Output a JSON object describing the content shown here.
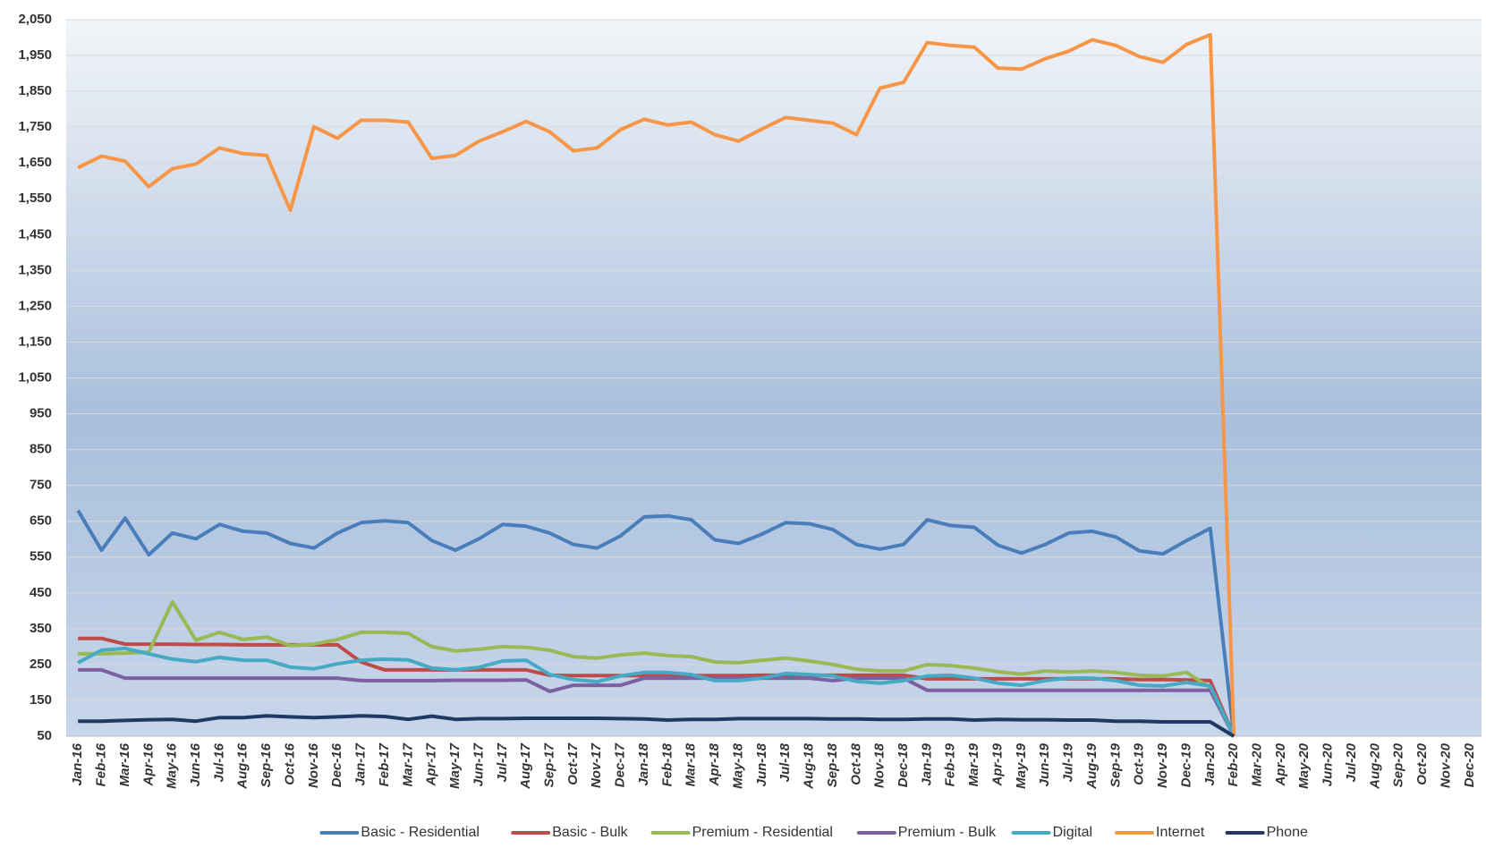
{
  "chart_data": {
    "type": "line",
    "categories": [
      "Jan-16",
      "Feb-16",
      "Mar-16",
      "Apr-16",
      "May-16",
      "Jun-16",
      "Jul-16",
      "Aug-16",
      "Sep-16",
      "Oct-16",
      "Nov-16",
      "Dec-16",
      "Jan-17",
      "Feb-17",
      "Mar-17",
      "Apr-17",
      "May-17",
      "Jun-17",
      "Jul-17",
      "Aug-17",
      "Sep-17",
      "Oct-17",
      "Nov-17",
      "Dec-17",
      "Jan-18",
      "Feb-18",
      "Mar-18",
      "Apr-18",
      "May-18",
      "Jun-18",
      "Jul-18",
      "Aug-18",
      "Sep-18",
      "Oct-18",
      "Nov-18",
      "Dec-18",
      "Jan-19",
      "Feb-19",
      "Mar-19",
      "Apr-19",
      "May-19",
      "Jun-19",
      "Jul-19",
      "Aug-19",
      "Sep-19",
      "Oct-19",
      "Nov-19",
      "Dec-19",
      "Jan-20",
      "Feb-20",
      "Mar-20",
      "Apr-20",
      "May-20",
      "Jun-20",
      "Jul-20",
      "Aug-20",
      "Sep-20",
      "Oct-20",
      "Nov-20",
      "Dec-20"
    ],
    "series": [
      {
        "name": "Basic - Residential",
        "color": "#4a7ebb",
        "values": [
          680,
          569,
          659,
          556,
          617,
          601,
          641,
          622,
          617,
          588,
          575,
          617,
          646,
          651,
          646,
          596,
          569,
          601,
          641,
          636,
          617,
          585,
          575,
          609,
          662,
          665,
          654,
          598,
          588,
          614,
          646,
          643,
          627,
          585,
          572,
          585,
          654,
          638,
          633,
          583,
          561,
          585,
          617,
          622,
          606,
          567,
          559,
          596,
          630,
          50,
          null,
          null,
          null,
          null,
          null,
          null,
          null,
          null,
          null,
          null
        ]
      },
      {
        "name": "Basic - Bulk",
        "color": "#be4b48",
        "values": [
          323,
          323,
          307,
          307,
          307,
          306,
          306,
          305,
          305,
          305,
          305,
          305,
          257,
          235,
          235,
          235,
          235,
          235,
          235,
          235,
          220,
          219,
          219,
          219,
          219,
          219,
          219,
          219,
          219,
          220,
          220,
          220,
          220,
          220,
          220,
          220,
          210,
          210,
          210,
          210,
          210,
          210,
          210,
          210,
          210,
          208,
          208,
          207,
          205,
          50,
          null,
          null,
          null,
          null,
          null,
          null,
          null,
          null,
          null,
          null
        ]
      },
      {
        "name": "Premium - Residential",
        "color": "#98b954",
        "values": [
          280,
          280,
          282,
          285,
          425,
          318,
          340,
          320,
          327,
          303,
          307,
          320,
          340,
          340,
          337,
          300,
          288,
          293,
          300,
          298,
          290,
          272,
          268,
          277,
          282,
          275,
          272,
          257,
          255,
          262,
          268,
          260,
          250,
          237,
          232,
          232,
          250,
          247,
          240,
          230,
          223,
          232,
          229,
          232,
          228,
          220,
          218,
          228,
          185,
          50,
          null,
          null,
          null,
          null,
          null,
          null,
          null,
          null,
          null,
          null
        ]
      },
      {
        "name": "Premium - Bulk",
        "color": "#7d60a0",
        "values": [
          235,
          235,
          212,
          212,
          212,
          212,
          212,
          212,
          212,
          212,
          212,
          212,
          205,
          205,
          205,
          205,
          206,
          206,
          206,
          207,
          175,
          192,
          192,
          192,
          212,
          212,
          212,
          212,
          212,
          212,
          212,
          212,
          205,
          212,
          212,
          212,
          178,
          178,
          178,
          178,
          178,
          178,
          178,
          178,
          178,
          178,
          178,
          178,
          178,
          50,
          null,
          null,
          null,
          null,
          null,
          null,
          null,
          null,
          null,
          null
        ]
      },
      {
        "name": "Digital",
        "color": "#46aac5",
        "values": [
          255,
          290,
          295,
          280,
          265,
          258,
          270,
          262,
          262,
          243,
          238,
          252,
          262,
          265,
          263,
          240,
          235,
          242,
          260,
          262,
          222,
          208,
          202,
          218,
          228,
          228,
          222,
          205,
          205,
          212,
          225,
          222,
          218,
          203,
          198,
          205,
          218,
          220,
          212,
          198,
          192,
          205,
          212,
          212,
          205,
          192,
          190,
          200,
          190,
          50,
          null,
          null,
          null,
          null,
          null,
          null,
          null,
          null,
          null,
          null
        ]
      },
      {
        "name": "Internet",
        "color": "#f79646",
        "values": [
          1637,
          1669,
          1655,
          1584,
          1634,
          1647,
          1692,
          1676,
          1671,
          1518,
          1751,
          1719,
          1769,
          1769,
          1764,
          1663,
          1671,
          1711,
          1737,
          1766,
          1737,
          1684,
          1692,
          1743,
          1772,
          1756,
          1764,
          1729,
          1711,
          1745,
          1777,
          1769,
          1761,
          1729,
          1859,
          1875,
          1986,
          1978,
          1973,
          1915,
          1912,
          1941,
          1962,
          1994,
          1978,
          1947,
          1931,
          1981,
          2008,
          50,
          null,
          null,
          null,
          null,
          null,
          null,
          null,
          null,
          null,
          null
        ]
      },
      {
        "name": "Phone",
        "color": "#1f3864",
        "values": [
          92,
          92,
          94,
          96,
          97,
          92,
          102,
          102,
          107,
          104,
          102,
          104,
          107,
          105,
          97,
          106,
          97,
          99,
          99,
          100,
          100,
          100,
          100,
          99,
          98,
          95,
          97,
          97,
          99,
          99,
          99,
          99,
          98,
          98,
          97,
          97,
          98,
          98,
          95,
          97,
          96,
          96,
          95,
          95,
          92,
          92,
          90,
          90,
          90,
          50,
          null,
          null,
          null,
          null,
          null,
          null,
          null,
          null,
          null,
          null
        ]
      }
    ],
    "ylim": [
      50,
      2050
    ],
    "yticks": [
      50,
      150,
      250,
      350,
      450,
      550,
      650,
      750,
      850,
      950,
      {
        "value": 1050,
        "label": "1,050"
      },
      {
        "value": 1150,
        "label": "1,150"
      },
      {
        "value": 1250,
        "label": "1,250"
      },
      {
        "value": 1350,
        "label": "1,350"
      },
      {
        "value": 1450,
        "label": "1,450"
      },
      {
        "value": 1550,
        "label": "1,550"
      },
      {
        "value": 1650,
        "label": "1,650"
      },
      {
        "value": 1750,
        "label": "1,750"
      },
      {
        "value": 1850,
        "label": "1,850"
      },
      {
        "value": 1950,
        "label": "1,950"
      },
      {
        "value": 2050,
        "label": "2,050"
      }
    ],
    "grid": true,
    "legend": "bottom"
  }
}
